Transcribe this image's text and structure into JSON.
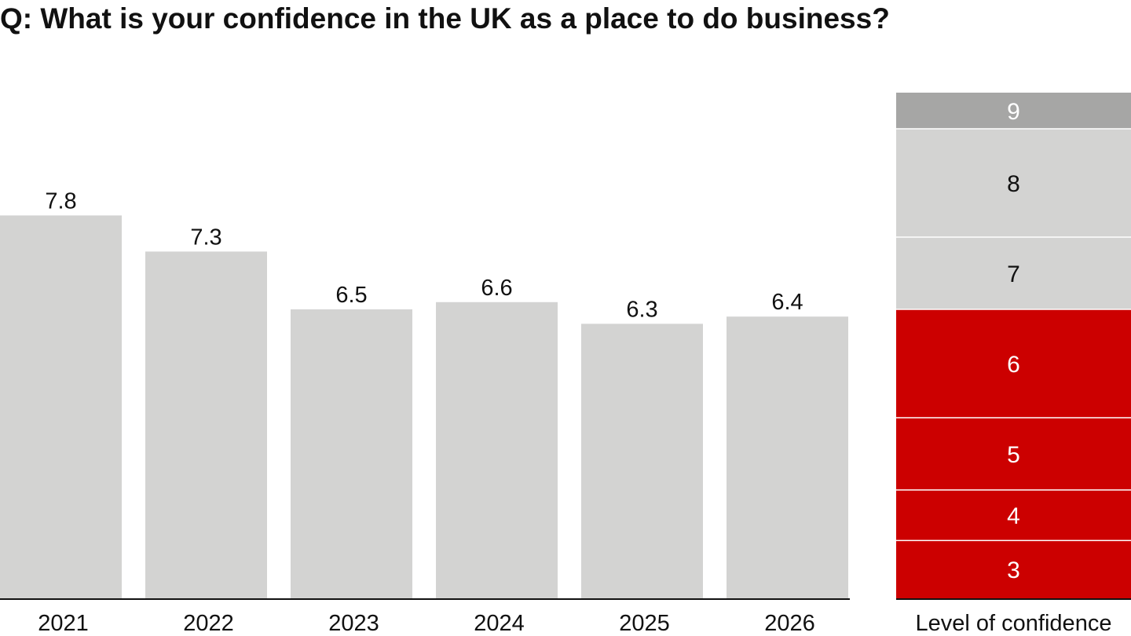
{
  "title": "Q: What is your confidence in the UK as a place to do business?",
  "colors": {
    "bar": "#d3d3d2",
    "neutral_segment": "#d3d3d2",
    "top_segment": "#a6a6a5",
    "low_segment": "#cc0000",
    "axis": "#111111",
    "text": "#111111"
  },
  "chart_data": [
    {
      "type": "bar",
      "categories": [
        "2021",
        "2022",
        "2023",
        "2024",
        "2025",
        "2026"
      ],
      "values": [
        7.8,
        7.3,
        6.5,
        6.6,
        6.3,
        6.4
      ],
      "value_labels": [
        "7.8",
        "7.3",
        "6.5",
        "6.6",
        "6.3",
        "6.4"
      ],
      "ylim": [
        2.5,
        9.5
      ],
      "grid": false,
      "xlabel": "",
      "ylabel": ""
    },
    {
      "type": "bar",
      "stacked": true,
      "category": "Level of confidence",
      "segments": [
        {
          "label": "9",
          "start": 9.0,
          "end": 9.5,
          "color": "#a6a6a5",
          "text_color": "#ffffff"
        },
        {
          "label": "8",
          "start": 7.5,
          "end": 9.0,
          "color": "#d3d3d2",
          "text_color": "#111111"
        },
        {
          "label": "7",
          "start": 6.5,
          "end": 7.5,
          "color": "#d3d3d2",
          "text_color": "#111111"
        },
        {
          "label": "6",
          "start": 5.0,
          "end": 6.5,
          "color": "#cc0000",
          "text_color": "#ffffff"
        },
        {
          "label": "5",
          "start": 4.0,
          "end": 5.0,
          "color": "#cc0000",
          "text_color": "#ffffff"
        },
        {
          "label": "4",
          "start": 3.3,
          "end": 4.0,
          "color": "#cc0000",
          "text_color": "#ffffff"
        },
        {
          "label": "3",
          "start": 2.5,
          "end": 3.3,
          "color": "#cc0000",
          "text_color": "#ffffff"
        }
      ]
    }
  ]
}
